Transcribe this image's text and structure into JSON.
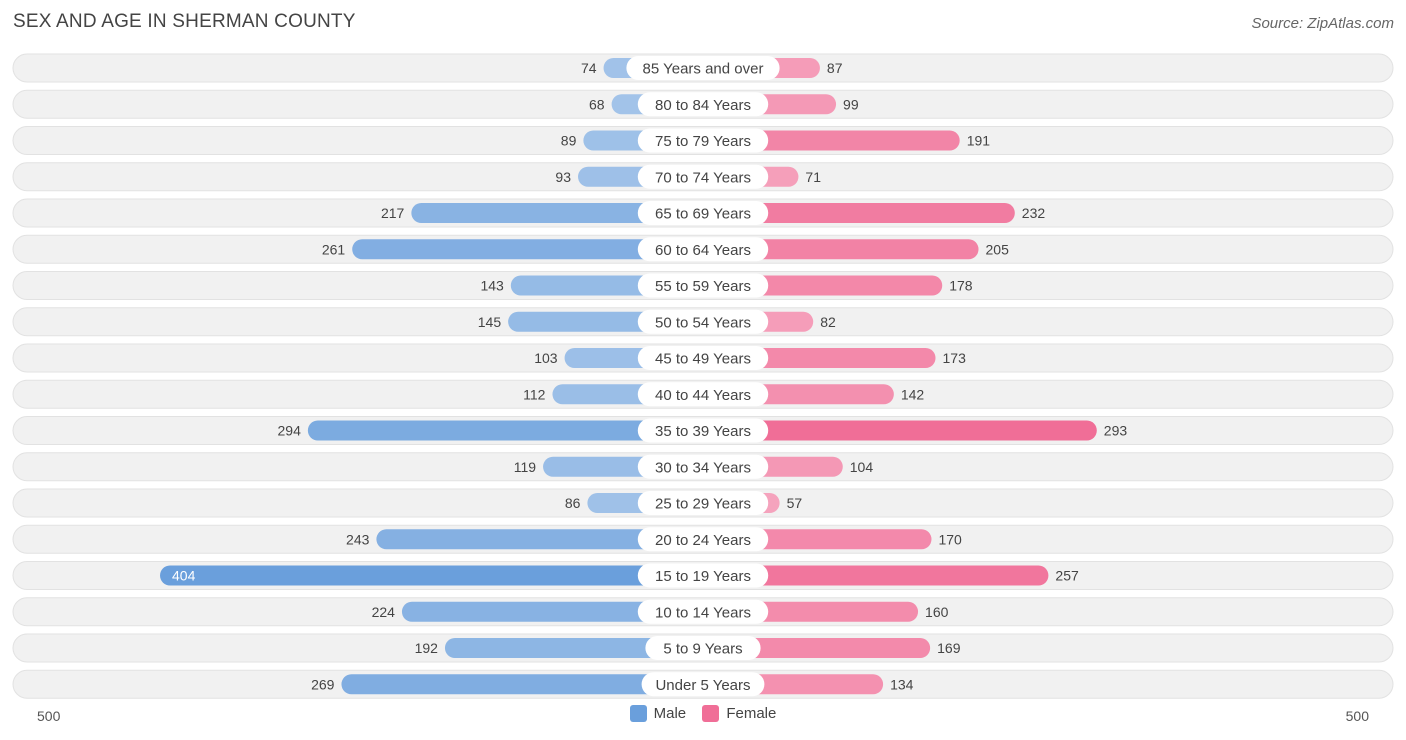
{
  "title": "SEX AND AGE IN SHERMAN COUNTY",
  "source": "Source: ZipAtlas.com",
  "colors": {
    "male": "#6a9fdc",
    "female": "#f06e97",
    "row_bg": "#f1f1f1",
    "label_bg": "#ffffff"
  },
  "chart_data": {
    "type": "bar",
    "orientation": "horizontal-diverging",
    "categories": [
      "85 Years and over",
      "80 to 84 Years",
      "75 to 79 Years",
      "70 to 74 Years",
      "65 to 69 Years",
      "60 to 64 Years",
      "55 to 59 Years",
      "50 to 54 Years",
      "45 to 49 Years",
      "40 to 44 Years",
      "35 to 39 Years",
      "30 to 34 Years",
      "25 to 29 Years",
      "20 to 24 Years",
      "15 to 19 Years",
      "10 to 14 Years",
      "5 to 9 Years",
      "Under 5 Years"
    ],
    "series": [
      {
        "name": "Male",
        "values": [
          74,
          68,
          89,
          93,
          217,
          261,
          143,
          145,
          103,
          112,
          294,
          119,
          86,
          243,
          404,
          224,
          192,
          269
        ]
      },
      {
        "name": "Female",
        "values": [
          87,
          99,
          191,
          71,
          232,
          205,
          178,
          82,
          173,
          142,
          293,
          104,
          57,
          170,
          257,
          160,
          169,
          134
        ]
      }
    ],
    "xlim": [
      -500,
      500
    ],
    "axis_left_label": "500",
    "axis_right_label": "500",
    "legend_position": "bottom-center"
  }
}
